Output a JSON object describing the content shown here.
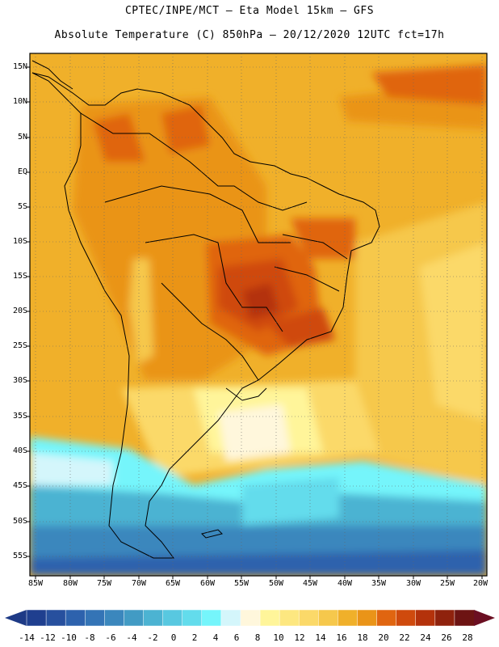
{
  "header": {
    "line1": "CPTEC/INPE/MCT –  Eta Model 15km – GFS",
    "line2": "Absolute Temperature (C) 850hPa – 20/12/2020 12UTC fct=17h"
  },
  "map": {
    "lat_labels": [
      "15N",
      "10N",
      "5N",
      "EQ",
      "5S",
      "10S",
      "15S",
      "20S",
      "25S",
      "30S",
      "35S",
      "40S",
      "45S",
      "50S",
      "55S"
    ],
    "lon_labels": [
      "85W",
      "80W",
      "75W",
      "70W",
      "65W",
      "60W",
      "55W",
      "50W",
      "45W",
      "40W",
      "35W",
      "30W",
      "25W",
      "20W"
    ]
  },
  "colorbar": {
    "labels": [
      "-14",
      "-12",
      "-10",
      "-8",
      "-6",
      "-4",
      "-2",
      "0",
      "2",
      "4",
      "6",
      "8",
      "10",
      "12",
      "14",
      "16",
      "18",
      "20",
      "22",
      "24",
      "26",
      "28"
    ],
    "colors": [
      "#1f3f8f",
      "#27509e",
      "#2d62ad",
      "#3474b6",
      "#3b87bd",
      "#429bc4",
      "#4cb3d2",
      "#58c8e0",
      "#63dcec",
      "#75f5fb",
      "#d4f6fb",
      "#fff7dc",
      "#fff59a",
      "#fde780",
      "#fbd969",
      "#f6c84c",
      "#f0b02a",
      "#ea9418",
      "#e06510",
      "#cf4a0d",
      "#b4320b",
      "#8f220d",
      "#6d1413"
    ],
    "low_color": "#1e3a86",
    "high_color": "#6b0f22"
  }
}
